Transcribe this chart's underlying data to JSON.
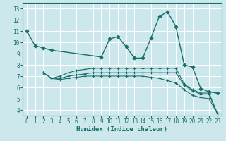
{
  "xlabel": "Humidex (Indice chaleur)",
  "ylabel": "",
  "xlim": [
    -0.5,
    23.5
  ],
  "ylim": [
    3.5,
    13.5
  ],
  "yticks": [
    4,
    5,
    6,
    7,
    8,
    9,
    10,
    11,
    12,
    13
  ],
  "xticks": [
    0,
    1,
    2,
    3,
    4,
    5,
    6,
    7,
    8,
    9,
    10,
    11,
    12,
    13,
    14,
    15,
    16,
    17,
    18,
    19,
    20,
    21,
    22,
    23
  ],
  "bg_color": "#cce8ec",
  "grid_color": "#ffffff",
  "line_color": "#1a6e6a",
  "lines": [
    {
      "x": [
        0,
        1,
        2,
        3,
        9,
        10,
        11,
        12,
        13,
        14,
        15,
        16,
        17,
        18,
        19,
        20,
        21,
        22,
        23
      ],
      "y": [
        11,
        9.7,
        9.5,
        9.3,
        8.7,
        10.3,
        10.5,
        9.6,
        8.6,
        8.6,
        10.4,
        12.3,
        12.7,
        11.4,
        8.0,
        7.8,
        5.9,
        5.6,
        5.5
      ],
      "marker": "D",
      "ms": 2.5,
      "lw": 1.0
    },
    {
      "x": [
        2,
        3,
        4,
        5,
        6,
        7,
        8,
        9,
        10,
        11,
        12,
        13,
        14,
        15,
        16,
        17,
        18,
        19,
        20,
        21,
        22,
        23
      ],
      "y": [
        7.3,
        6.8,
        7.0,
        7.3,
        7.5,
        7.6,
        7.7,
        7.7,
        7.7,
        7.7,
        7.7,
        7.7,
        7.7,
        7.7,
        7.7,
        7.7,
        7.7,
        6.3,
        5.8,
        5.5,
        5.5,
        3.7
      ],
      "marker": "+",
      "ms": 3.5,
      "lw": 0.8
    },
    {
      "x": [
        2,
        3,
        4,
        5,
        6,
        7,
        8,
        9,
        10,
        11,
        12,
        13,
        14,
        15,
        16,
        17,
        18,
        19,
        20,
        21,
        22,
        23
      ],
      "y": [
        7.3,
        6.8,
        6.8,
        7.0,
        7.1,
        7.2,
        7.3,
        7.3,
        7.3,
        7.3,
        7.3,
        7.3,
        7.3,
        7.3,
        7.3,
        7.3,
        7.3,
        6.2,
        5.7,
        5.4,
        5.4,
        3.7
      ],
      "marker": "+",
      "ms": 3.5,
      "lw": 0.8
    },
    {
      "x": [
        2,
        3,
        4,
        5,
        6,
        7,
        8,
        9,
        10,
        11,
        12,
        13,
        14,
        15,
        16,
        17,
        18,
        19,
        20,
        21,
        22,
        23
      ],
      "y": [
        7.3,
        6.8,
        6.7,
        6.8,
        6.9,
        7.0,
        7.0,
        7.0,
        7.0,
        7.0,
        7.0,
        7.0,
        7.0,
        6.9,
        6.8,
        6.6,
        6.4,
        5.8,
        5.3,
        5.1,
        5.0,
        3.7
      ],
      "marker": "+",
      "ms": 3.5,
      "lw": 0.8
    }
  ]
}
